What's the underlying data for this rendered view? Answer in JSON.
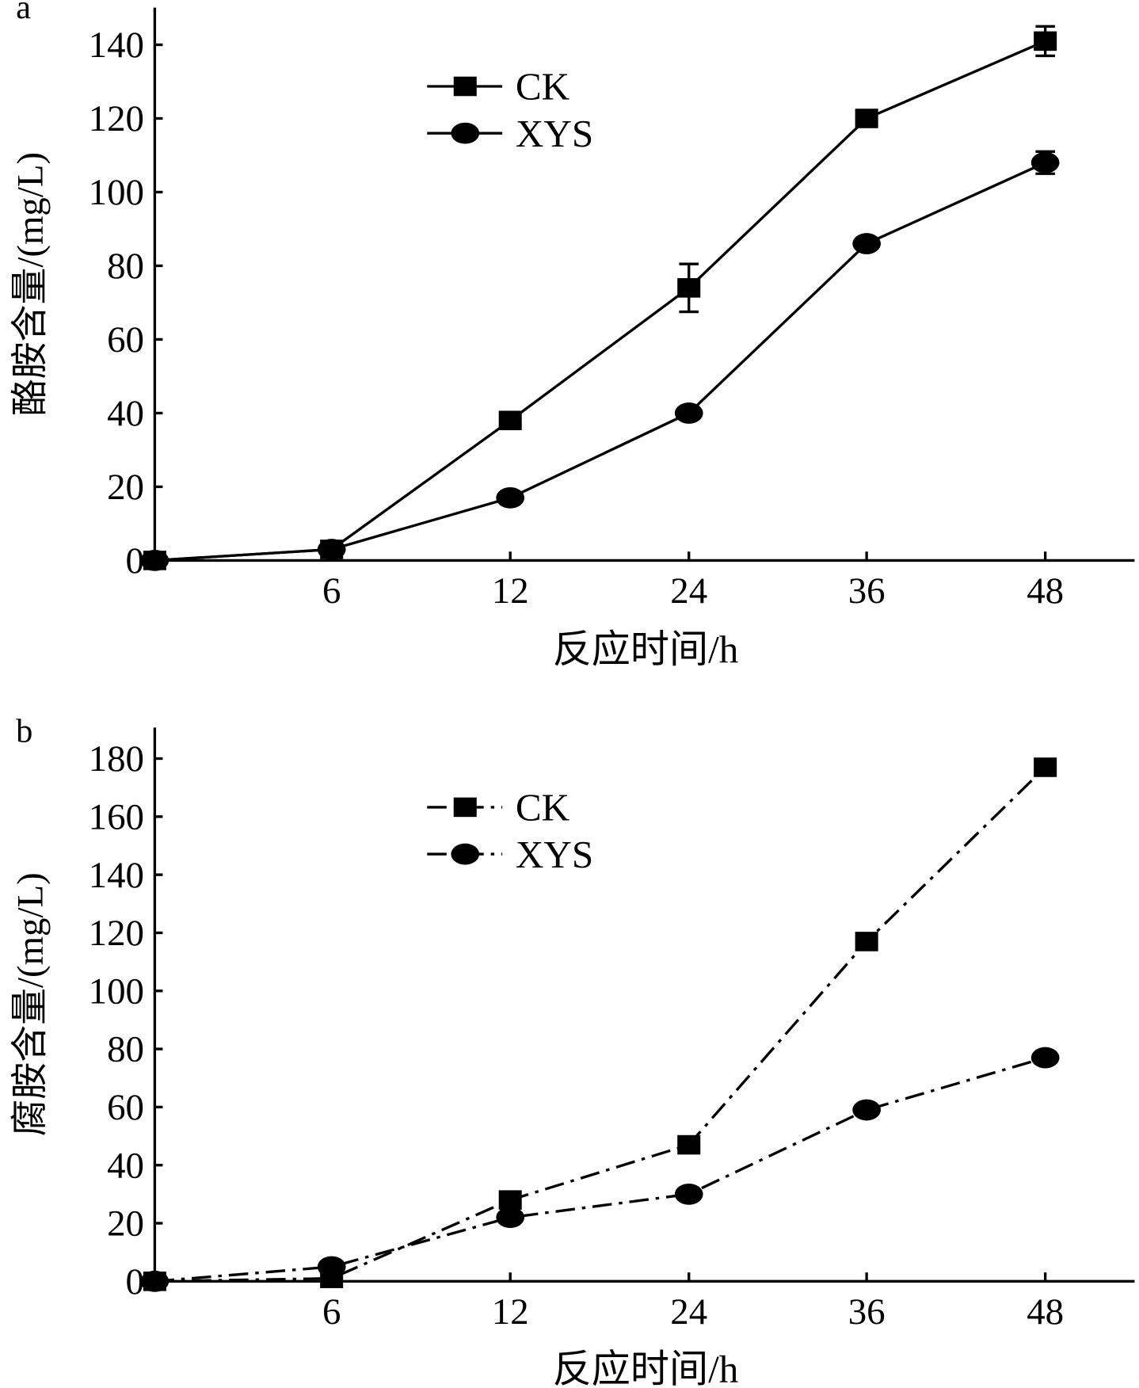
{
  "chart_data": [
    {
      "panel_label": "a",
      "type": "line",
      "categories": [
        "0",
        "6",
        "12",
        "24",
        "36",
        "48"
      ],
      "x_tick_labels": [
        "6",
        "12",
        "24",
        "36",
        "48"
      ],
      "xlabel": "反应时间/h",
      "ylabel": "酪胺含量/(mg/L)",
      "ylim": [
        0,
        150
      ],
      "yticks": [
        0,
        20,
        40,
        60,
        80,
        100,
        120,
        140
      ],
      "legend_position": "top-left",
      "line_style": "solid",
      "series": [
        {
          "name": "CK",
          "marker": "square",
          "values": [
            0,
            3,
            38,
            74,
            120,
            141
          ],
          "errors": [
            0,
            0,
            0,
            6.5,
            0,
            4
          ]
        },
        {
          "name": "XYS",
          "marker": "circle",
          "values": [
            0,
            3,
            17,
            40,
            86,
            108
          ],
          "errors": [
            0,
            0,
            0,
            0,
            0,
            3
          ]
        }
      ]
    },
    {
      "panel_label": "b",
      "type": "line",
      "categories": [
        "0",
        "6",
        "12",
        "24",
        "36",
        "48"
      ],
      "x_tick_labels": [
        "6",
        "12",
        "24",
        "36",
        "48"
      ],
      "xlabel": "反应时间/h",
      "ylabel": "腐胺含量/(mg/L)",
      "ylim": [
        0,
        190
      ],
      "yticks": [
        0,
        20,
        40,
        60,
        80,
        100,
        120,
        140,
        160,
        180
      ],
      "legend_position": "top-left",
      "line_style": "dash-dot",
      "series": [
        {
          "name": "CK",
          "marker": "square",
          "values": [
            0,
            1,
            28,
            47,
            117,
            177
          ],
          "errors": [
            0,
            0,
            0,
            0,
            0,
            2
          ]
        },
        {
          "name": "XYS",
          "marker": "circle",
          "values": [
            0,
            5,
            22,
            30,
            59,
            77
          ],
          "errors": [
            0,
            0,
            0,
            0,
            0,
            2
          ]
        }
      ]
    }
  ]
}
